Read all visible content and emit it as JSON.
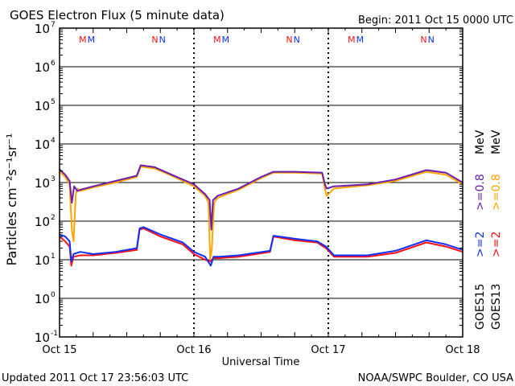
{
  "chart_data": {
    "type": "line",
    "title": "GOES Electron Flux (5 minute data)",
    "begin_label": "Begin: 2011 Oct 15 0000 UTC",
    "xlabel": "Universal Time",
    "ylabel": "Particles cm⁻²s⁻¹sr⁻¹",
    "x_unit": "hours since 2011 Oct 15 00:00 UTC",
    "xlim": [
      0,
      72
    ],
    "ylim": [
      0.1,
      10000000
    ],
    "yscale": "log",
    "x_ticks": [
      {
        "x": 0,
        "label": "Oct 15"
      },
      {
        "x": 24,
        "label": "Oct 16"
      },
      {
        "x": 48,
        "label": "Oct 17"
      },
      {
        "x": 72,
        "label": "Oct 18"
      }
    ],
    "y_ticks": [
      {
        "base": "10",
        "exp": "7",
        "value": 10000000
      },
      {
        "base": "10",
        "exp": "6",
        "value": 1000000
      },
      {
        "base": "10",
        "exp": "5",
        "value": 100000
      },
      {
        "base": "10",
        "exp": "4",
        "value": 10000
      },
      {
        "base": "10",
        "exp": "3",
        "value": 1000
      },
      {
        "base": "10",
        "exp": "2",
        "value": 100
      },
      {
        "base": "10",
        "exp": "1",
        "value": 10
      },
      {
        "base": "10",
        "exp": "0",
        "value": 1
      },
      {
        "base": "10",
        "exp": "-1",
        "value": 0.1
      }
    ],
    "threshold": 1000,
    "markers": [
      {
        "x": 4.9,
        "label": "M"
      },
      {
        "x": 17.7,
        "label": "N"
      },
      {
        "x": 28.9,
        "label": "M"
      },
      {
        "x": 41.7,
        "label": "N"
      },
      {
        "x": 52.9,
        "label": "M"
      },
      {
        "x": 65.7,
        "label": "N"
      }
    ],
    "series": [
      {
        "name": "GOES15 >=0.8 MeV",
        "color": "#6a1fb0",
        "x": [
          0,
          1,
          1.8,
          2.2,
          2.6,
          3.2,
          3.7,
          6,
          10,
          13.8,
          14.5,
          17,
          20,
          24,
          26,
          26.8,
          27.1,
          27.4,
          28.2,
          32,
          36,
          38.2,
          42,
          46.9,
          47.4,
          47.7,
          49,
          55,
          60,
          65.5,
          69,
          72
        ],
        "y": [
          2200,
          1600,
          1100,
          300,
          800,
          600,
          650,
          800,
          1100,
          1500,
          2800,
          2500,
          1600,
          900,
          500,
          350,
          60,
          350,
          450,
          700,
          1400,
          1900,
          1900,
          1800,
          900,
          700,
          800,
          900,
          1200,
          2100,
          1800,
          1000
        ]
      },
      {
        "name": "GOES13 >=0.8 MeV",
        "color": "#ffa500",
        "x": [
          0,
          1,
          1.8,
          2.2,
          2.5,
          2.9,
          3.2,
          3.7,
          6,
          10,
          13.8,
          14.5,
          17,
          20,
          24,
          26,
          26.6,
          26.9,
          27.2,
          27.6,
          28.2,
          32,
          36,
          38.2,
          42,
          46.9,
          47.4,
          47.7,
          48.3,
          49,
          55,
          60,
          65.5,
          69,
          72
        ],
        "y": [
          1900,
          1400,
          900,
          60,
          30,
          500,
          700,
          600,
          750,
          1000,
          1400,
          2600,
          2300,
          1500,
          800,
          450,
          300,
          10,
          20,
          300,
          400,
          650,
          1300,
          1800,
          1800,
          1700,
          700,
          450,
          550,
          700,
          850,
          1100,
          1900,
          1600,
          900
        ]
      },
      {
        "name": "GOES15 >=2 MeV",
        "color": "#1030ff",
        "x": [
          0,
          1,
          1.8,
          2.1,
          2.5,
          3.7,
          6,
          10,
          13.8,
          14.3,
          15,
          18,
          22,
          24,
          26,
          27,
          27.5,
          28.5,
          32,
          37.6,
          38.2,
          42,
          46,
          47.6,
          49,
          55,
          60,
          65.5,
          69,
          72
        ],
        "y": [
          45,
          40,
          30,
          9,
          14,
          16,
          14,
          16,
          20,
          65,
          70,
          45,
          28,
          16,
          12,
          7,
          12,
          12,
          13,
          17,
          42,
          35,
          30,
          22,
          13,
          13,
          17,
          32,
          25,
          18
        ]
      },
      {
        "name": "GOES13 >=2 MeV",
        "color": "#ff1010",
        "x": [
          0,
          1,
          1.8,
          2.1,
          2.5,
          3.7,
          6,
          10,
          13.8,
          14.3,
          15,
          18,
          22,
          24,
          26,
          27,
          27.5,
          28.5,
          32,
          37.6,
          38.2,
          42,
          46,
          47.6,
          49,
          55,
          60,
          65.5,
          69,
          72
        ],
        "y": [
          40,
          30,
          22,
          7,
          12,
          13,
          13,
          15,
          18,
          60,
          65,
          40,
          25,
          14,
          10,
          9,
          11,
          11,
          12,
          16,
          40,
          32,
          28,
          20,
          12,
          12,
          15,
          28,
          22,
          16
        ]
      }
    ],
    "legend": {
      "placement": "right",
      "columns": [
        {
          "satellite": "GOES15",
          "low": ">=2",
          "high": ">=0.8",
          "unit": "MeV"
        },
        {
          "satellite": "GOES13",
          "low": ">=2",
          "high": ">=0.8",
          "unit": "MeV"
        }
      ]
    }
  },
  "footer": {
    "updated": "Updated 2011 Oct 17 23:56:03 UTC",
    "credit": "NOAA/SWPC Boulder, CO USA"
  }
}
